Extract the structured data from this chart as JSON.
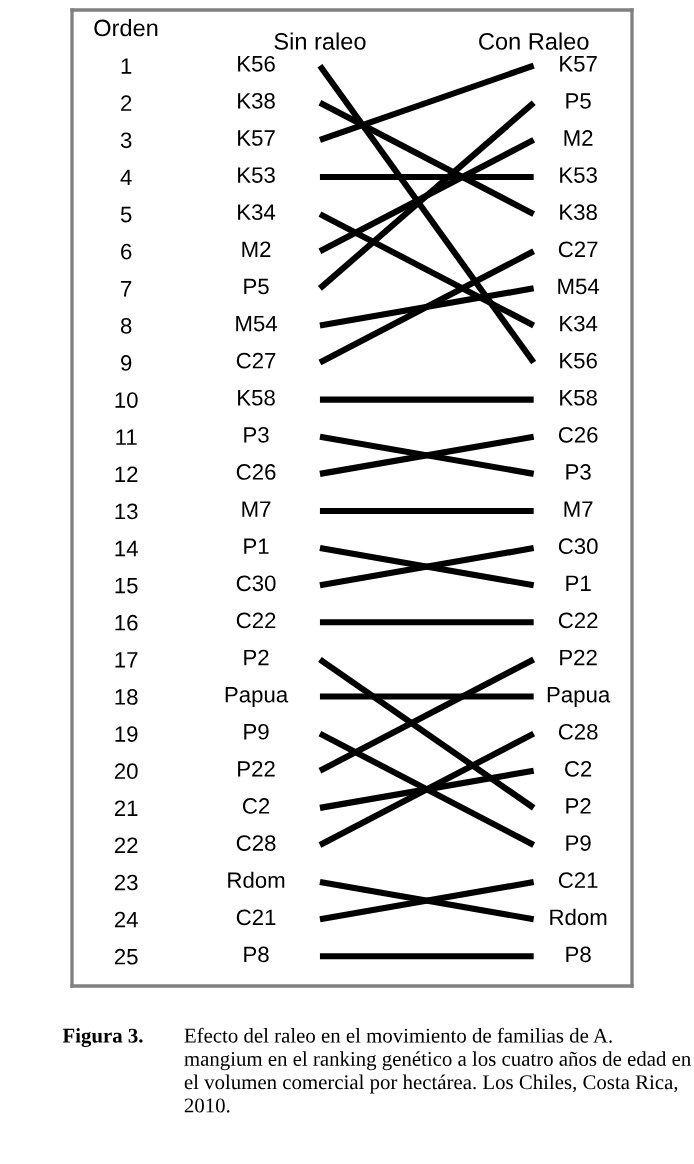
{
  "chart_data": {
    "type": "line",
    "ylabel": "Orden",
    "categories": [
      "Sin raleo",
      "Con Raleo"
    ],
    "ylim": [
      25.8,
      -0.5
    ],
    "yticks": [
      1,
      2,
      3,
      4,
      5,
      6,
      7,
      8,
      9,
      10,
      11,
      12,
      13,
      14,
      15,
      16,
      17,
      18,
      19,
      20,
      21,
      22,
      23,
      24,
      25
    ],
    "series": [
      {
        "name": "K56",
        "color": "#000000",
        "values": [
          1,
          9
        ]
      },
      {
        "name": "K38",
        "color": "#000000",
        "values": [
          2,
          5
        ]
      },
      {
        "name": "K57",
        "color": "#000000",
        "values": [
          3,
          1
        ]
      },
      {
        "name": "K53",
        "color": "#000000",
        "values": [
          4,
          4
        ]
      },
      {
        "name": "K34",
        "color": "#000000",
        "values": [
          5,
          8
        ]
      },
      {
        "name": "M2",
        "color": "#000000",
        "values": [
          6,
          3
        ]
      },
      {
        "name": "P5",
        "color": "#000000",
        "values": [
          7,
          2
        ]
      },
      {
        "name": "M54",
        "color": "#000000",
        "values": [
          8,
          7
        ]
      },
      {
        "name": "C27",
        "color": "#000000",
        "values": [
          9,
          6
        ]
      },
      {
        "name": "K58",
        "color": "#000000",
        "values": [
          10,
          10
        ]
      },
      {
        "name": "P3",
        "color": "#000000",
        "values": [
          11,
          12
        ]
      },
      {
        "name": "C26",
        "color": "#000000",
        "values": [
          12,
          11
        ]
      },
      {
        "name": "M7",
        "color": "#000000",
        "values": [
          13,
          13
        ]
      },
      {
        "name": "P1",
        "color": "#000000",
        "values": [
          14,
          15
        ]
      },
      {
        "name": "C30",
        "color": "#000000",
        "values": [
          15,
          14
        ]
      },
      {
        "name": "C22",
        "color": "#000000",
        "values": [
          16,
          16
        ]
      },
      {
        "name": "P2",
        "color": "#000000",
        "values": [
          17,
          21
        ]
      },
      {
        "name": "Papua",
        "color": "#000000",
        "values": [
          18,
          18
        ]
      },
      {
        "name": "P9",
        "color": "#000000",
        "values": [
          19,
          22
        ]
      },
      {
        "name": "P22",
        "color": "#000000",
        "values": [
          20,
          17
        ]
      },
      {
        "name": "C2",
        "color": "#000000",
        "values": [
          21,
          20
        ]
      },
      {
        "name": "C28",
        "color": "#000000",
        "values": [
          22,
          19
        ]
      },
      {
        "name": "Rdom",
        "color": "#000000",
        "values": [
          23,
          24
        ]
      },
      {
        "name": "C21",
        "color": "#000000",
        "values": [
          24,
          23
        ]
      },
      {
        "name": "P8",
        "color": "#000000",
        "values": [
          25,
          25
        ]
      }
    ],
    "annotations": [
      "Figura 3.",
      "Efecto del raleo en el movimiento de familias de A. mangium en el ranking genético a los cuatro años de edad en el volumen comercial por hectárea. Los Chiles, Costa Rica, 2010."
    ]
  }
}
